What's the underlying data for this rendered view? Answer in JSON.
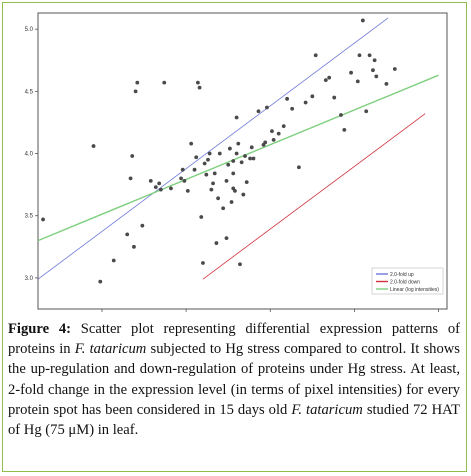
{
  "chart_data": {
    "type": "scatter",
    "xlim": [
      2.62,
      5.05
    ],
    "ylim": [
      2.75,
      5.13
    ],
    "x_ticks": [
      "3.0",
      "3.5",
      "4.0",
      "4.5",
      "5.0"
    ],
    "y_ticks": [
      "3.0",
      "3.5",
      "4.0",
      "4.5",
      "5.0"
    ],
    "grid": false,
    "legend": {
      "placement": "bottom-right",
      "entries": [
        {
          "label": "2.0-fold up",
          "color": "#6f78d8"
        },
        {
          "label": "2.0-fold down",
          "color": "#d0313d"
        },
        {
          "label": "Linear (log intensities)",
          "color": "#7ecf7e"
        }
      ]
    },
    "series": [
      {
        "type": "points",
        "color": "#4a4a4a",
        "x": [
          2.65,
          2.95,
          2.99,
          3.07,
          3.15,
          3.17,
          3.18,
          3.19,
          3.2,
          3.21,
          3.24,
          3.29,
          3.32,
          3.34,
          3.35,
          3.37,
          3.41,
          3.47,
          3.48,
          3.49,
          3.51,
          3.53,
          3.55,
          3.56,
          3.57,
          3.58,
          3.59,
          3.6,
          3.61,
          3.62,
          3.63,
          3.64,
          3.65,
          3.66,
          3.67,
          3.68,
          3.69,
          3.7,
          3.72,
          3.74,
          3.74,
          3.75,
          3.76,
          3.77,
          3.78,
          3.78,
          3.78,
          3.79,
          3.8,
          3.8,
          3.81,
          3.82,
          3.83,
          3.84,
          3.85,
          3.86,
          3.88,
          3.89,
          3.9,
          3.93,
          3.96,
          3.97,
          3.98,
          4.01,
          4.02,
          4.05,
          4.08,
          4.1,
          4.13,
          4.17,
          4.21,
          4.25,
          4.27,
          4.33,
          4.35,
          4.38,
          4.42,
          4.44,
          4.48,
          4.52,
          4.53,
          4.55,
          4.57,
          4.59,
          4.61,
          4.62,
          4.63,
          4.69,
          4.74
        ],
        "y": [
          3.47,
          4.06,
          2.97,
          3.14,
          3.35,
          3.8,
          3.98,
          3.25,
          4.5,
          4.57,
          3.42,
          3.78,
          3.73,
          3.76,
          3.71,
          4.57,
          3.72,
          3.8,
          3.87,
          3.78,
          3.7,
          4.08,
          3.87,
          3.97,
          4.57,
          4.53,
          3.49,
          3.12,
          3.92,
          3.83,
          3.95,
          4.0,
          3.71,
          3.76,
          3.84,
          3.28,
          3.64,
          4.0,
          3.56,
          3.78,
          3.32,
          3.91,
          4.04,
          3.61,
          3.72,
          3.94,
          3.84,
          3.7,
          4.0,
          4.29,
          4.08,
          3.11,
          3.93,
          3.67,
          3.98,
          3.77,
          3.96,
          4.05,
          3.96,
          4.34,
          4.07,
          4.09,
          4.37,
          4.18,
          4.11,
          4.16,
          4.22,
          4.44,
          4.36,
          3.89,
          4.41,
          4.46,
          4.79,
          4.59,
          4.61,
          4.45,
          4.31,
          4.19,
          4.65,
          4.58,
          4.79,
          5.07,
          4.34,
          4.79,
          4.67,
          4.75,
          4.62,
          4.56,
          4.68
        ]
      },
      {
        "name": "2.0-fold up",
        "type": "line",
        "color": "#6f78d8",
        "x": [
          2.62,
          4.7
        ],
        "y": [
          2.99,
          5.09
        ]
      },
      {
        "name": "2.0-fold down",
        "type": "line",
        "color": "#d0313d",
        "x": [
          3.6,
          4.92
        ],
        "y": [
          2.99,
          4.32
        ]
      },
      {
        "name": "Linear (log intensities)",
        "type": "line",
        "color": "#7ecf7e",
        "x": [
          2.62,
          5.0
        ],
        "y": [
          3.3,
          4.63
        ]
      }
    ]
  },
  "caption": {
    "label": "Figure 4:",
    "text_1": "Scatter plot representing differential expression patterns of proteins in",
    "species_1": "F. tataricum",
    "text_2": "subjected to Hg stress compared to control. It shows the up-regulation and down-regulation of proteins under Hg stress. At least, 2-fold change in the expression level (in terms of pixel intensities) for every protein spot has been considered in 15 days old",
    "species_2": "F. tataricum",
    "text_3": "studied 72 HAT of Hg (75 μM) in leaf."
  }
}
